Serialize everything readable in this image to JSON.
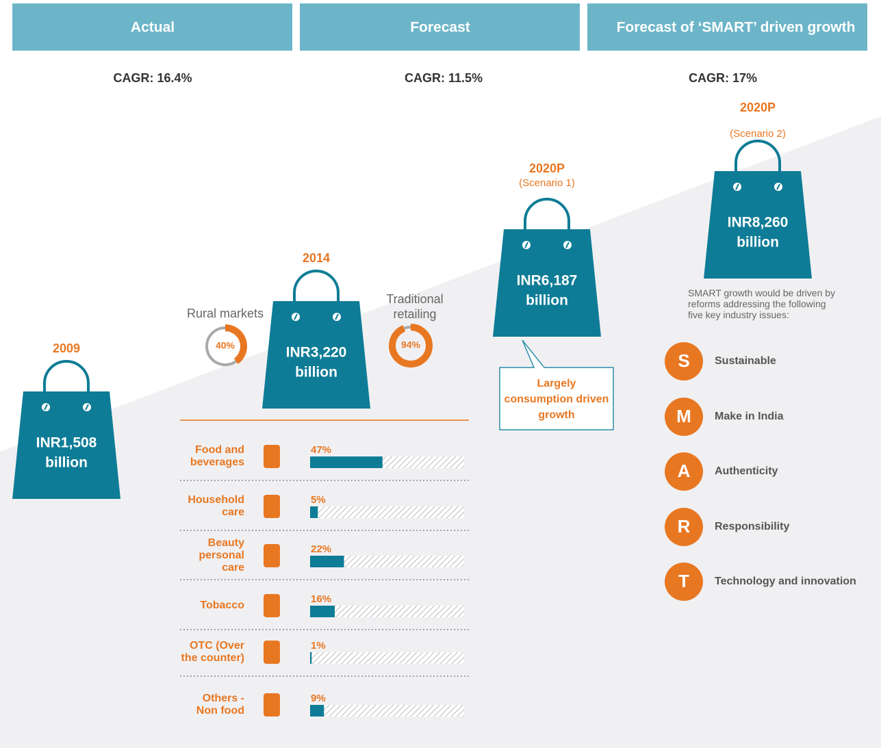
{
  "header": {
    "columns": [
      "Actual",
      "Forecast",
      "Forecast of ‘SMART’ driven growth"
    ]
  },
  "cagr": [
    "CAGR: 16.4%",
    "CAGR: 11.5%",
    "CAGR: 17%"
  ],
  "bags": [
    {
      "year": "2009",
      "amount": "INR1,508",
      "unit": "billion"
    },
    {
      "year": "2014",
      "amount": "INR3,220",
      "unit": "billion"
    },
    {
      "year": "2020P",
      "note": "(Scenario 1)",
      "amount": "INR6,187",
      "unit": "billion"
    },
    {
      "year": "2020P",
      "note": "(Scenario 2)",
      "amount": "INR8,260",
      "unit": "billion"
    }
  ],
  "donuts": [
    {
      "label": "Rural markets",
      "value": 40,
      "value_label": "40%"
    },
    {
      "label": "Traditional\nretailing",
      "value": 94,
      "value_label": "94%"
    }
  ],
  "callout": "Largely\nconsumption driven\ngrowth",
  "categories": {
    "xlim": [
      0,
      100
    ],
    "items": [
      {
        "label": "Food and\nbeverages",
        "value": 47,
        "value_label": "47%"
      },
      {
        "label": "Household\ncare",
        "value": 5,
        "value_label": "5%"
      },
      {
        "label": "Beauty\npersonal\ncare",
        "value": 22,
        "value_label": "22%"
      },
      {
        "label": "Tobacco",
        "value": 16,
        "value_label": "16%"
      },
      {
        "label": "OTC (Over\nthe counter)",
        "value": 1,
        "value_label": "1%"
      },
      {
        "label": "Others -\nNon food",
        "value": 9,
        "value_label": "9%"
      }
    ]
  },
  "smart": {
    "intro": "SMART growth would be driven by\nreforms addressing the following\nfive key industry issues:",
    "items": [
      {
        "letter": "S",
        "label": "Sustainable"
      },
      {
        "letter": "M",
        "label": "Make in India"
      },
      {
        "letter": "A",
        "label": "Authenticity"
      },
      {
        "letter": "R",
        "label": "Responsibility"
      },
      {
        "letter": "T",
        "label": "Technology and  innovation"
      }
    ]
  }
}
